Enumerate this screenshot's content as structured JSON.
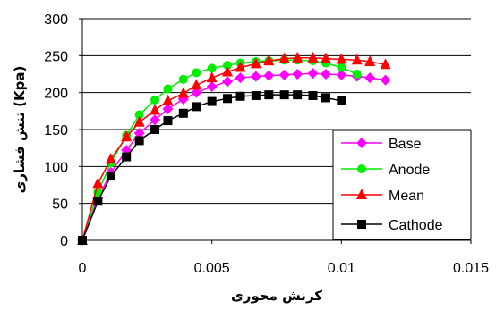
{
  "chart_data": {
    "type": "line",
    "xlabel": "کرنش محوری",
    "ylabel": "تنش فشاری (Kpa)",
    "xlim": [
      0,
      0.015
    ],
    "ylim": [
      0,
      300
    ],
    "xticks": [
      "0",
      "0.005",
      "0.01",
      "0.015"
    ],
    "yticks": [
      "0",
      "50",
      "100",
      "150",
      "200",
      "250",
      "300"
    ],
    "xtick_values": [
      0,
      0.005,
      0.01,
      0.015
    ],
    "ytick_values": [
      0,
      50,
      100,
      150,
      200,
      250,
      300
    ],
    "grid": "horizontal",
    "legend_position": "bottom-right",
    "series": [
      {
        "name": "Base",
        "color": "#ff00ff",
        "marker": "diamond",
        "x": [
          0,
          0.0006,
          0.0011,
          0.0017,
          0.0022,
          0.0028,
          0.0033,
          0.0039,
          0.0044,
          0.005,
          0.0056,
          0.0061,
          0.0067,
          0.0072,
          0.0078,
          0.0083,
          0.0089,
          0.0094,
          0.01,
          0.0106,
          0.0111,
          0.0117
        ],
        "y": [
          0,
          57,
          92,
          122,
          145,
          163,
          178,
          191,
          200,
          208,
          215,
          220,
          222,
          223,
          224,
          225,
          226,
          225,
          224,
          222,
          220,
          217
        ]
      },
      {
        "name": "Anode",
        "color": "#00ee00",
        "marker": "circle",
        "x": [
          0,
          0.0006,
          0.0011,
          0.0017,
          0.0022,
          0.0028,
          0.0033,
          0.0039,
          0.0044,
          0.005,
          0.0056,
          0.0061,
          0.0067,
          0.0072,
          0.0078,
          0.0083,
          0.0089,
          0.0094,
          0.01,
          0.0106
        ],
        "y": [
          0,
          65,
          105,
          142,
          170,
          190,
          205,
          218,
          227,
          233,
          237,
          240,
          242,
          243,
          244,
          244,
          243,
          240,
          234,
          225
        ]
      },
      {
        "name": "Mean",
        "color": "#ff0000",
        "marker": "triangle",
        "x": [
          0,
          0.0006,
          0.0011,
          0.0017,
          0.0022,
          0.0028,
          0.0033,
          0.0039,
          0.0044,
          0.005,
          0.0056,
          0.0061,
          0.0067,
          0.0072,
          0.0078,
          0.0083,
          0.0089,
          0.0094,
          0.01,
          0.0106,
          0.0111,
          0.0117
        ],
        "y": [
          0,
          77,
          110,
          140,
          160,
          176,
          189,
          199,
          210,
          220,
          228,
          234,
          239,
          243,
          246,
          247,
          247,
          246,
          245,
          244,
          242,
          238
        ]
      },
      {
        "name": "Cathode",
        "color": "#000000",
        "marker": "square",
        "x": [
          0,
          0.0006,
          0.0011,
          0.0017,
          0.0022,
          0.0028,
          0.0033,
          0.0039,
          0.0044,
          0.005,
          0.0056,
          0.0061,
          0.0067,
          0.0072,
          0.0078,
          0.0083,
          0.0089,
          0.0094,
          0.01
        ],
        "y": [
          0,
          53,
          87,
          113,
          135,
          150,
          162,
          172,
          181,
          188,
          192,
          195,
          196,
          197,
          197,
          197,
          196,
          193,
          189
        ]
      }
    ]
  }
}
